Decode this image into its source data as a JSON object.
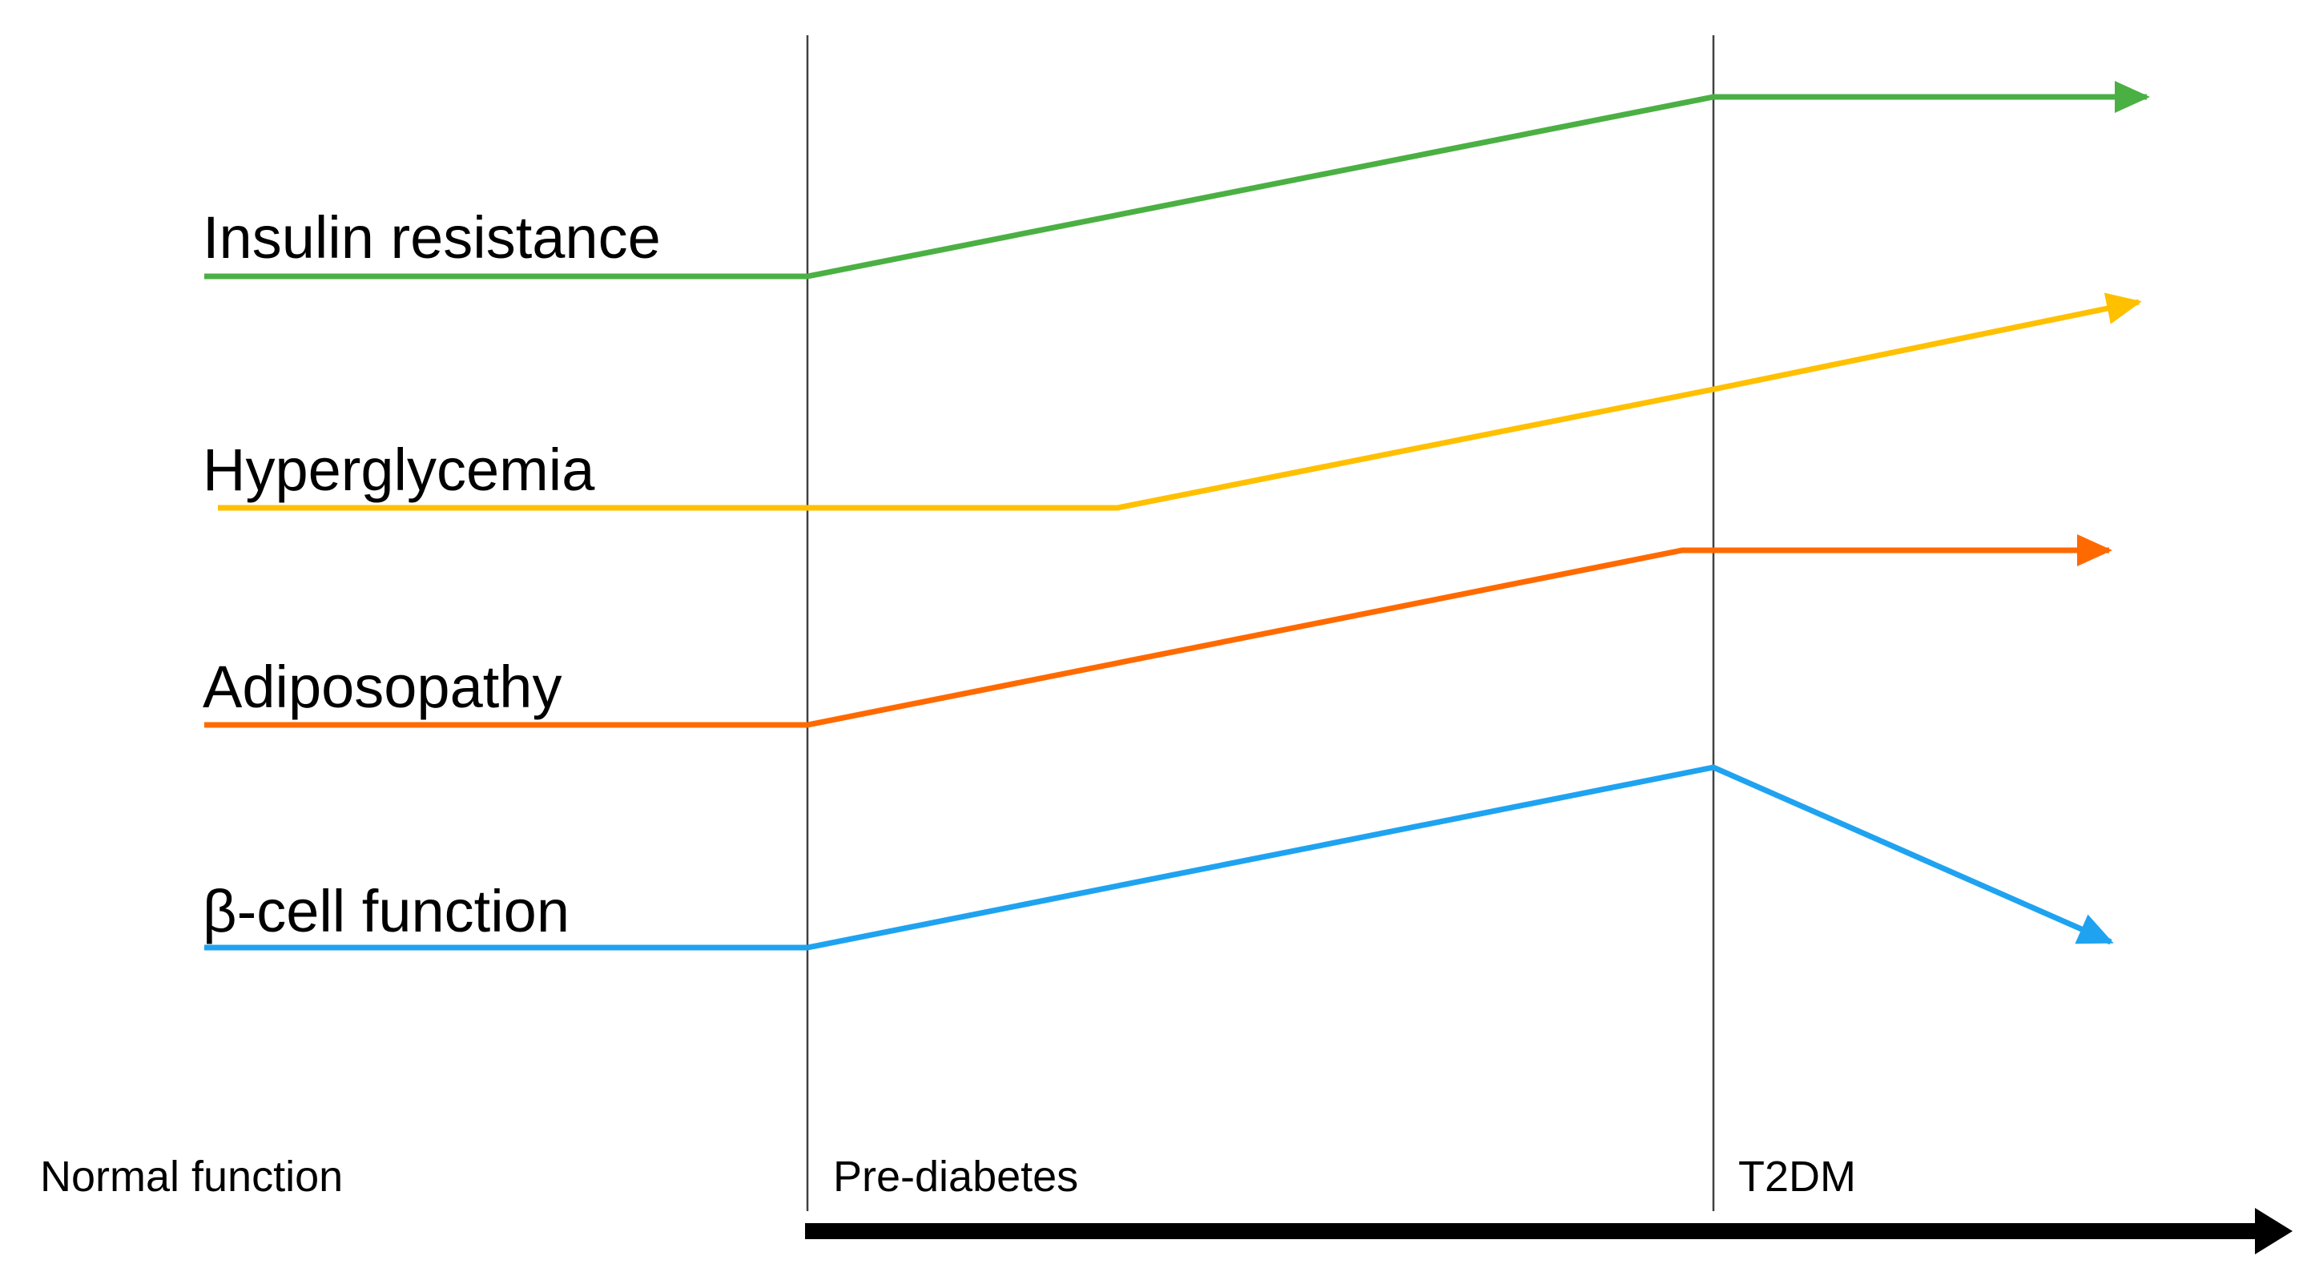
{
  "diagram": {
    "phases": [
      {
        "label": "Normal function"
      },
      {
        "label": "Pre-diabetes"
      },
      {
        "label": "T2DM"
      }
    ],
    "series": [
      {
        "id": "insulin",
        "label": "Insulin resistance",
        "color": "#4BB043"
      },
      {
        "id": "hyper",
        "label": "Hyperglycemia",
        "color": "#FFC000"
      },
      {
        "id": "adipo",
        "label": "Adiposopathy",
        "color": "#FF6A00"
      },
      {
        "id": "beta",
        "label": "β-cell function",
        "color": "#1FA3F0"
      }
    ],
    "progression_arrow_color": "#000000"
  }
}
